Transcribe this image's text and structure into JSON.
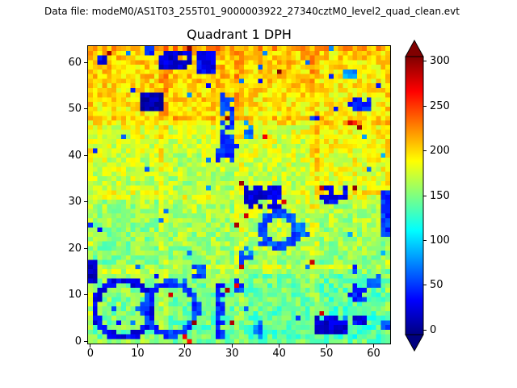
{
  "header": {
    "data_file_label": "Data file: modeM0/AS1T03_255T01_9000003922_27340cztM0_level2_quad_clean.evt"
  },
  "chart_data": {
    "type": "heatmap",
    "title": "Quadrant 1 DPH",
    "x_ticks": [
      0,
      10,
      20,
      30,
      40,
      50,
      60
    ],
    "y_ticks": [
      0,
      10,
      20,
      30,
      40,
      50,
      60
    ],
    "x_range": [
      -0.5,
      63.5
    ],
    "y_range": [
      -0.5,
      63.5
    ],
    "grid": false,
    "colormap": "jet",
    "colorbar": {
      "ticks": [
        0,
        50,
        100,
        150,
        200,
        250,
        300
      ],
      "vmin": -5,
      "vmax": 305,
      "extend": "both",
      "under_color": "#000080",
      "over_color": "#800000",
      "stops": [
        [
          0.0,
          "#000080"
        ],
        [
          0.125,
          "#0000ff"
        ],
        [
          0.375,
          "#00ffff"
        ],
        [
          0.625,
          "#ffff00"
        ],
        [
          0.875,
          "#ff0000"
        ],
        [
          1.0,
          "#800000"
        ]
      ]
    },
    "heatmap_spec": {
      "width": 64,
      "height": 64,
      "seed": 42,
      "base": 135,
      "row_gradient": 55,
      "noise": 22,
      "seam_boost": 12,
      "low_speckle_p": 0.01,
      "hot_speckle_p": 0.003,
      "module_offsets": [
        [
          10,
          5,
          0,
          -5
        ],
        [
          0,
          5,
          10,
          5
        ],
        [
          5,
          0,
          5,
          15
        ],
        [
          15,
          20,
          15,
          10
        ]
      ],
      "features": [
        {
          "type": "rect",
          "x": 15,
          "y": 59,
          "w": 7,
          "h": 4,
          "v": 20,
          "holes": 0.15
        },
        {
          "type": "pixel",
          "x": 21,
          "y": 63,
          "v": 300
        },
        {
          "type": "rect",
          "x": 23,
          "y": 58,
          "w": 4,
          "h": 5,
          "v": 30,
          "holes": 0.1
        },
        {
          "type": "rect",
          "x": 2,
          "y": 60,
          "w": 2,
          "h": 2,
          "v": 30
        },
        {
          "type": "rect",
          "x": 12,
          "y": 62,
          "w": 2,
          "h": 2,
          "v": 45
        },
        {
          "type": "rect",
          "x": 54,
          "y": 57,
          "w": 3,
          "h": 2,
          "v": 80
        },
        {
          "type": "rect",
          "x": 56,
          "y": 50,
          "w": 4,
          "h": 3,
          "v": 40,
          "holes": 0.15
        },
        {
          "type": "pixel",
          "x": 55,
          "y": 47,
          "v": 280
        },
        {
          "type": "pixel",
          "x": 56,
          "y": 47,
          "v": 255
        },
        {
          "type": "pixel",
          "x": 57,
          "y": 46,
          "v": 300
        },
        {
          "type": "rect",
          "x": 11,
          "y": 50,
          "w": 5,
          "h": 4,
          "v": 12
        },
        {
          "type": "rect",
          "x": 28,
          "y": 41,
          "w": 3,
          "h": 13,
          "v": 50,
          "holes": 0.2
        },
        {
          "type": "rect",
          "x": 27,
          "y": 39,
          "w": 4,
          "h": 3,
          "v": 45,
          "holes": 0.2
        },
        {
          "type": "pixel",
          "x": 29,
          "y": 48,
          "v": 300
        },
        {
          "type": "rect",
          "x": 33,
          "y": 44,
          "w": 2,
          "h": 4,
          "v": 70,
          "holes": 0.3
        },
        {
          "type": "rect",
          "x": 49,
          "y": 30,
          "w": 6,
          "h": 4,
          "v": 30,
          "holes": 0.25
        },
        {
          "type": "pixel",
          "x": 49,
          "y": 33,
          "v": 285
        },
        {
          "type": "pixel",
          "x": 56,
          "y": 33,
          "v": 300
        },
        {
          "type": "rect",
          "x": 33,
          "y": 29,
          "w": 8,
          "h": 5,
          "v": 25,
          "holes": 0.2
        },
        {
          "type": "pixel",
          "x": 32,
          "y": 34,
          "v": 295
        },
        {
          "type": "pixel",
          "x": 41,
          "y": 30,
          "v": 275
        },
        {
          "type": "rect",
          "x": 62,
          "y": 23,
          "w": 2,
          "h": 10,
          "v": 50,
          "holes": 0.1
        },
        {
          "type": "ring",
          "cx": 40,
          "cy": 24,
          "r": 3.5,
          "t": 1.5,
          "v": 55
        },
        {
          "type": "rect",
          "x": 44,
          "y": 22,
          "w": 3,
          "h": 4,
          "v": 65,
          "holes": 0.3
        },
        {
          "type": "rect",
          "x": 32,
          "y": 17,
          "w": 3,
          "h": 4,
          "v": 60,
          "holes": 0.3
        },
        {
          "type": "rect",
          "x": 0,
          "y": 13,
          "w": 2,
          "h": 5,
          "v": 10
        },
        {
          "type": "rect",
          "x": 22,
          "y": 14,
          "w": 3,
          "h": 3,
          "v": 55,
          "holes": 0.2
        },
        {
          "type": "ring",
          "cx": 7,
          "cy": 7,
          "r": 6,
          "t": 1.8,
          "v": 30
        },
        {
          "type": "ring",
          "cx": 17,
          "cy": 7,
          "r": 5.5,
          "t": 1.5,
          "v": 50
        },
        {
          "type": "pixel",
          "x": 17,
          "y": 10,
          "v": 280
        },
        {
          "type": "pixel",
          "x": 22,
          "y": 4,
          "v": 300
        },
        {
          "type": "pixel",
          "x": 20,
          "y": 1,
          "v": 270
        },
        {
          "type": "pixel",
          "x": 21,
          "y": 0,
          "v": 260
        },
        {
          "type": "rect",
          "x": 27,
          "y": 1,
          "w": 2,
          "h": 12,
          "v": 45,
          "holes": 0.15
        },
        {
          "type": "pixel",
          "x": 30,
          "y": 4,
          "v": 290
        },
        {
          "type": "rect",
          "x": 31,
          "y": 11,
          "w": 2,
          "h": 3,
          "v": 55,
          "holes": 0.2
        },
        {
          "type": "rect",
          "x": 35,
          "y": 1,
          "w": 2,
          "h": 4,
          "v": 65,
          "holes": 0.3
        },
        {
          "type": "rect",
          "x": 48,
          "y": 2,
          "w": 7,
          "h": 4,
          "v": 20,
          "holes": 0.25
        },
        {
          "type": "pixel",
          "x": 49,
          "y": 6,
          "v": 280
        },
        {
          "type": "rect",
          "x": 55,
          "y": 9,
          "w": 4,
          "h": 3,
          "v": 45,
          "holes": 0.15
        },
        {
          "type": "rect",
          "x": 59,
          "y": 12,
          "w": 3,
          "h": 2,
          "v": 60
        },
        {
          "type": "rect",
          "x": 56,
          "y": 4,
          "w": 3,
          "h": 2,
          "v": 30
        },
        {
          "type": "rect",
          "x": 62,
          "y": 3,
          "w": 2,
          "h": 2,
          "v": 55
        }
      ]
    }
  }
}
